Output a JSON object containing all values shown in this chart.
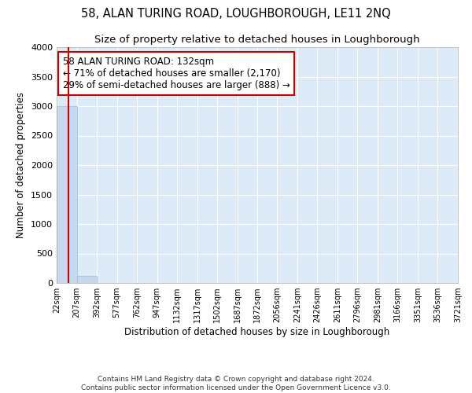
{
  "title": "58, ALAN TURING ROAD, LOUGHBOROUGH, LE11 2NQ",
  "subtitle": "Size of property relative to detached houses in Loughborough",
  "xlabel": "Distribution of detached houses by size in Loughborough",
  "ylabel": "Number of detached properties",
  "bin_edges": [
    22,
    207,
    392,
    577,
    762,
    947,
    1132,
    1317,
    1502,
    1687,
    1872,
    2056,
    2241,
    2426,
    2611,
    2796,
    2981,
    3166,
    3351,
    3536,
    3721
  ],
  "bar_heights": [
    3000,
    115,
    2,
    1,
    0,
    0,
    0,
    0,
    0,
    0,
    0,
    0,
    0,
    0,
    0,
    0,
    0,
    0,
    0,
    0
  ],
  "bar_color": "#c5d8ef",
  "bar_edge_color": "#9abcd8",
  "property_size": 132,
  "property_line_color": "#cc0000",
  "annotation_text": "58 ALAN TURING ROAD: 132sqm\n← 71% of detached houses are smaller (2,170)\n29% of semi-detached houses are larger (888) →",
  "annotation_box_color": "#ffffff",
  "annotation_box_edge_color": "#cc0000",
  "ylim": [
    0,
    4000
  ],
  "yticks": [
    0,
    500,
    1000,
    1500,
    2000,
    2500,
    3000,
    3500,
    4000
  ],
  "background_color": "#ddeaf7",
  "footer_line1": "Contains HM Land Registry data © Crown copyright and database right 2024.",
  "footer_line2": "Contains public sector information licensed under the Open Government Licence v3.0.",
  "title_fontsize": 10.5,
  "subtitle_fontsize": 9.5,
  "tick_label_fontsize": 7,
  "ylabel_fontsize": 8.5,
  "xlabel_fontsize": 8.5,
  "footer_fontsize": 6.5
}
